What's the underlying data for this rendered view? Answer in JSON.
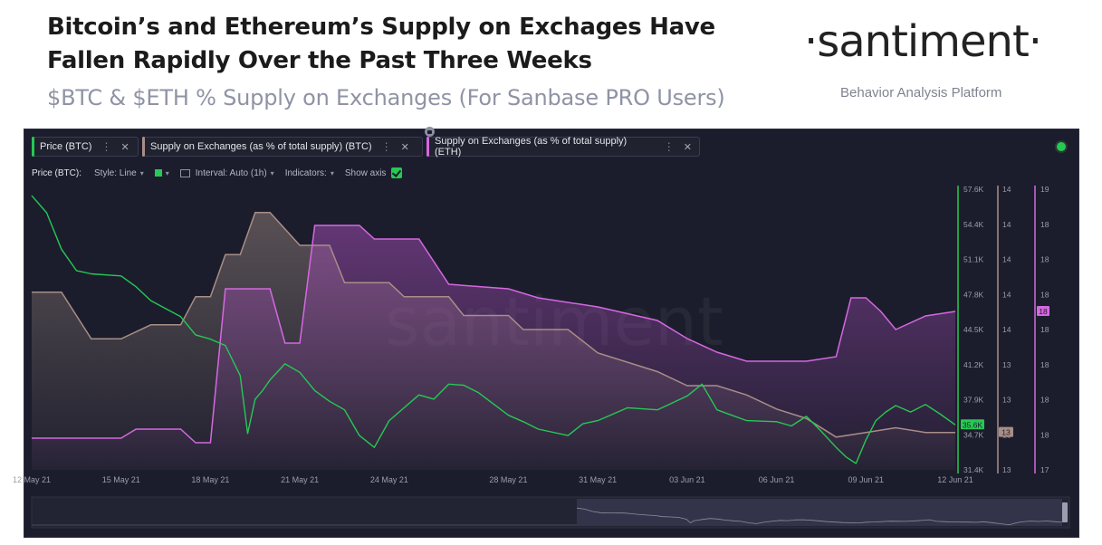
{
  "header": {
    "title": "Bitcoin’s and Ethereum’s Supply on Exchages Have Fallen Rapidly Over the Past Three Weeks",
    "subtitle": "$BTC & $ETH % Supply on Exchanges (For Sanbase PRO Users)",
    "logo": "·santiment·",
    "tagline": "Behavior Analysis Platform"
  },
  "tabs": [
    {
      "label": "Price (BTC)",
      "color": "#26c953"
    },
    {
      "label": "Supply on Exchanges (as % of total supply) (BTC)",
      "color": "#a88e86"
    },
    {
      "label": "Supply on Exchanges (as % of total supply) (ETH)",
      "color": "#d468e0"
    }
  ],
  "toolbar": {
    "metric": "Price (BTC):",
    "style": "Style: Line",
    "interval": "Interval: Auto (1h)",
    "indicators": "Indicators:",
    "show_axis": "Show axis"
  },
  "icons": {
    "status": "status-dot-icon",
    "lock": "lock-icon",
    "calendar": "calendar-icon",
    "check": "checkbox-icon"
  },
  "watermark": "santiment",
  "chart_data": {
    "type": "line",
    "x": [
      "12 May 21",
      "15 May 21",
      "18 May 21",
      "21 May 21",
      "24 May 21",
      "28 May 21",
      "31 May 21",
      "03 Jun 21",
      "06 Jun 21",
      "09 Jun 21",
      "12 Jun 21"
    ],
    "series": [
      {
        "name": "Price (BTC)",
        "color": "#26c953",
        "axis_ticks": [
          "57.6K",
          "54.4K",
          "51.1K",
          "47.8K",
          "44.5K",
          "41.2K",
          "37.9K",
          "34.7K",
          "31.4K"
        ],
        "ylim": [
          31.4,
          57.6
        ],
        "last_value": "35.6K",
        "points": [
          [
            "12 May 21",
            57.0
          ],
          [
            "12 May 21",
            55.4
          ],
          [
            "13 May 21",
            52.0
          ],
          [
            "13 May 21",
            50.0
          ],
          [
            "14 May 21",
            49.7
          ],
          [
            "15 May 21",
            49.5
          ],
          [
            "15 May 21",
            48.5
          ],
          [
            "16 May 21",
            47.2
          ],
          [
            "17 May 21",
            45.7
          ],
          [
            "17 May 21",
            44.0
          ],
          [
            "18 May 21",
            43.6
          ],
          [
            "18 May 21",
            43.0
          ],
          [
            "19 May 21",
            40.2
          ],
          [
            "19 May 21",
            34.8
          ],
          [
            "19 May 21",
            38.0
          ],
          [
            "19 May 21",
            38.8
          ],
          [
            "20 May 21",
            39.8
          ],
          [
            "20 May 21",
            41.3
          ],
          [
            "21 May 21",
            40.5
          ],
          [
            "21 May 21",
            38.8
          ],
          [
            "22 May 21",
            37.8
          ],
          [
            "22 May 21",
            37.0
          ],
          [
            "23 May 21",
            34.6
          ],
          [
            "23 May 21",
            33.5
          ],
          [
            "24 May 21",
            36.0
          ],
          [
            "25 May 21",
            38.4
          ],
          [
            "25 May 21",
            38.0
          ],
          [
            "26 May 21",
            39.4
          ],
          [
            "26 May 21",
            39.3
          ],
          [
            "27 May 21",
            38.6
          ],
          [
            "28 May 21",
            36.5
          ],
          [
            "28 May 21",
            35.9
          ],
          [
            "29 May 21",
            35.2
          ],
          [
            "30 May 21",
            34.6
          ],
          [
            "30 May 21",
            35.7
          ],
          [
            "31 May 21",
            36.0
          ],
          [
            "01 Jun 21",
            37.2
          ],
          [
            "02 Jun 21",
            37.0
          ],
          [
            "03 Jun 21",
            38.3
          ],
          [
            "03 Jun 21",
            39.4
          ],
          [
            "04 Jun 21",
            37.0
          ],
          [
            "04 Jun 21",
            36.5
          ],
          [
            "05 Jun 21",
            36.0
          ],
          [
            "06 Jun 21",
            35.9
          ],
          [
            "06 Jun 21",
            35.5
          ],
          [
            "07 Jun 21",
            36.4
          ],
          [
            "07 Jun 21",
            35.0
          ],
          [
            "08 Jun 21",
            33.5
          ],
          [
            "08 Jun 21",
            32.6
          ],
          [
            "08 Jun 21",
            32.0
          ],
          [
            "09 Jun 21",
            34.2
          ],
          [
            "09 Jun 21",
            36.0
          ],
          [
            "09 Jun 21",
            36.8
          ],
          [
            "10 Jun 21",
            37.4
          ],
          [
            "10 Jun 21",
            36.8
          ],
          [
            "11 Jun 21",
            37.5
          ],
          [
            "11 Jun 21",
            36.6
          ],
          [
            "12 Jun 21",
            35.6
          ]
        ]
      },
      {
        "name": "Supply on Exchanges (as % of total supply) (BTC)",
        "color": "#a88e86",
        "axis_ticks": [
          "14",
          "14",
          "14",
          "14",
          "14",
          "13",
          "13",
          "13",
          "13"
        ],
        "last_value": "13",
        "points": [
          [
            "12 May 21",
            13.63
          ],
          [
            "13 May 21",
            13.63
          ],
          [
            "14 May 21",
            13.53
          ],
          [
            "15 May 21",
            13.53
          ],
          [
            "16 May 21",
            13.56
          ],
          [
            "17 May 21",
            13.56
          ],
          [
            "17 May 21",
            13.62
          ],
          [
            "18 May 21",
            13.62
          ],
          [
            "18 May 21",
            13.71
          ],
          [
            "19 May 21",
            13.71
          ],
          [
            "19 May 21",
            13.8
          ],
          [
            "20 May 21",
            13.8
          ],
          [
            "21 May 21",
            13.73
          ],
          [
            "22 May 21",
            13.73
          ],
          [
            "22 May 21",
            13.65
          ],
          [
            "24 May 21",
            13.65
          ],
          [
            "24 May 21",
            13.62
          ],
          [
            "26 May 21",
            13.62
          ],
          [
            "26 May 21",
            13.58
          ],
          [
            "28 May 21",
            13.58
          ],
          [
            "28 May 21",
            13.55
          ],
          [
            "30 May 21",
            13.55
          ],
          [
            "31 May 21",
            13.5
          ],
          [
            "02 Jun 21",
            13.46
          ],
          [
            "03 Jun 21",
            13.43
          ],
          [
            "04 Jun 21",
            13.43
          ],
          [
            "05 Jun 21",
            13.41
          ],
          [
            "06 Jun 21",
            13.38
          ],
          [
            "07 Jun 21",
            13.36
          ],
          [
            "08 Jun 21",
            13.32
          ],
          [
            "09 Jun 21",
            13.33
          ],
          [
            "10 Jun 21",
            13.34
          ],
          [
            "11 Jun 21",
            13.33
          ],
          [
            "12 Jun 21",
            13.33
          ]
        ]
      },
      {
        "name": "Supply on Exchanges (as % of total supply) (ETH)",
        "color": "#d468e0",
        "axis_ticks": [
          "19",
          "18",
          "18",
          "18",
          "18",
          "18",
          "18",
          "18",
          "17"
        ],
        "last_value": "18",
        "points": [
          [
            "12 May 21",
            17.35
          ],
          [
            "15 May 21",
            17.35
          ],
          [
            "15 May 21",
            17.37
          ],
          [
            "17 May 21",
            17.37
          ],
          [
            "17 May 21",
            17.34
          ],
          [
            "18 May 21",
            17.34
          ],
          [
            "18 May 21",
            17.68
          ],
          [
            "20 May 21",
            17.68
          ],
          [
            "20 May 21",
            17.56
          ],
          [
            "21 May 21",
            17.56
          ],
          [
            "21 May 21",
            17.82
          ],
          [
            "23 May 21",
            17.82
          ],
          [
            "23 May 21",
            17.79
          ],
          [
            "25 May 21",
            17.79
          ],
          [
            "26 May 21",
            17.69
          ],
          [
            "28 May 21",
            17.68
          ],
          [
            "29 May 21",
            17.66
          ],
          [
            "31 May 21",
            17.64
          ],
          [
            "02 Jun 21",
            17.61
          ],
          [
            "03 Jun 21",
            17.57
          ],
          [
            "04 Jun 21",
            17.54
          ],
          [
            "05 Jun 21",
            17.52
          ],
          [
            "07 Jun 21",
            17.52
          ],
          [
            "08 Jun 21",
            17.53
          ],
          [
            "08 Jun 21",
            17.66
          ],
          [
            "09 Jun 21",
            17.66
          ],
          [
            "09 Jun 21",
            17.63
          ],
          [
            "10 Jun 21",
            17.59
          ],
          [
            "11 Jun 21",
            17.62
          ],
          [
            "12 Jun 21",
            17.63
          ]
        ]
      }
    ],
    "grid": false,
    "legend": "top"
  }
}
